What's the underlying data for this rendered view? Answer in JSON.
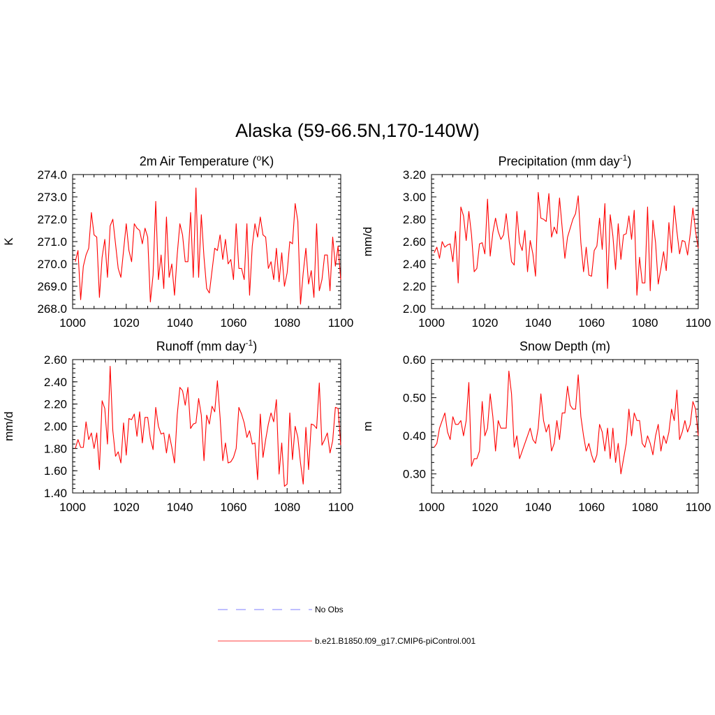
{
  "title": "Alaska (59-66.5N,170-140W)",
  "colors": {
    "model": "#ff0000",
    "obs": "#9999ff",
    "axis": "#000000"
  },
  "legend": [
    {
      "label": "No Obs",
      "style": "dashed",
      "color": "#9999ff"
    },
    {
      "label": "b.e21.B1850.f09_g17.CMIP6-piControl.001",
      "style": "solid",
      "color": "#ff6666"
    }
  ],
  "chart_data": [
    {
      "type": "line",
      "title": "2m Air Temperature (°K)",
      "title_parts": [
        "2m Air Temperature (",
        "o",
        "K)"
      ],
      "ylabel": "K",
      "xlim": [
        1000,
        1100
      ],
      "ylim": [
        268.0,
        274.0
      ],
      "xticks": [
        "1000",
        "1020",
        "1040",
        "1060",
        "1080",
        "1100"
      ],
      "yticks": [
        "268.0",
        "269.0",
        "270.0",
        "271.0",
        "272.0",
        "273.0",
        "274.0"
      ],
      "x_start": 1001,
      "series": [
        {
          "name": "b.e21.B1850.f09_g17.CMIP6-piControl.001",
          "values": [
            270.1,
            270.6,
            268.4,
            269.9,
            270.4,
            270.7,
            272.3,
            271.3,
            271.2,
            268.5,
            270.3,
            271.1,
            269.4,
            271.7,
            272.0,
            270.9,
            269.8,
            269.4,
            270.6,
            271.8,
            270.6,
            270.1,
            271.8,
            271.6,
            271.5,
            270.9,
            271.6,
            271.2,
            268.3,
            269.5,
            272.8,
            269.3,
            270.4,
            268.9,
            272.1,
            269.4,
            270.0,
            268.6,
            270.4,
            271.8,
            271.3,
            270.1,
            270.1,
            272.3,
            269.4,
            273.4,
            269.4,
            272.2,
            270.3,
            268.9,
            268.7,
            269.7,
            270.7,
            270.6,
            271.3,
            270.2,
            271.1,
            270.0,
            270.2,
            269.3,
            271.8,
            269.8,
            269.8,
            269.3,
            271.8,
            268.6,
            270.8,
            271.8,
            271.2,
            272.1,
            271.3,
            271.2,
            269.8,
            270.1,
            269.3,
            270.7,
            269.2,
            270.5,
            269.0,
            269.6,
            271.0,
            270.9,
            272.7,
            271.9,
            268.2,
            269.6,
            270.7,
            269.1,
            269.7,
            268.5,
            271.8,
            268.8,
            269.3,
            270.4,
            270.4,
            268.8,
            271.2,
            269.9,
            270.8,
            269.3
          ]
        }
      ]
    },
    {
      "type": "line",
      "title": "Precipitation (mm day-1)",
      "title_parts": [
        "Precipitation (mm day",
        "-1",
        ")"
      ],
      "ylabel": "mm/d",
      "xlim": [
        1000,
        1100
      ],
      "ylim": [
        2.0,
        3.2
      ],
      "xticks": [
        "1000",
        "1020",
        "1040",
        "1060",
        "1080",
        "1100"
      ],
      "yticks": [
        "2.00",
        "2.20",
        "2.40",
        "2.60",
        "2.80",
        "3.00",
        "3.20"
      ],
      "x_start": 1001,
      "series": [
        {
          "name": "b.e21.B1850.f09_g17.CMIP6-piControl.001",
          "values": [
            2.5,
            2.55,
            2.45,
            2.6,
            2.55,
            2.57,
            2.58,
            2.42,
            2.69,
            2.23,
            2.91,
            2.83,
            2.61,
            2.87,
            2.66,
            2.33,
            2.36,
            2.58,
            2.59,
            2.49,
            2.98,
            2.47,
            2.68,
            2.81,
            2.69,
            2.62,
            2.66,
            2.85,
            2.63,
            2.42,
            2.39,
            2.87,
            2.59,
            2.52,
            2.7,
            2.33,
            2.61,
            2.49,
            2.29,
            3.04,
            2.81,
            2.8,
            2.78,
            3.03,
            2.64,
            2.73,
            2.67,
            2.99,
            2.72,
            2.45,
            2.64,
            2.72,
            2.8,
            2.85,
            3.01,
            2.59,
            2.33,
            2.55,
            2.3,
            2.29,
            2.52,
            2.56,
            2.81,
            2.53,
            2.94,
            2.18,
            2.84,
            2.65,
            2.35,
            2.76,
            2.44,
            2.66,
            2.67,
            2.83,
            2.62,
            2.88,
            2.12,
            2.46,
            2.23,
            2.23,
            2.91,
            2.16,
            2.79,
            2.59,
            2.22,
            2.36,
            2.51,
            2.34,
            2.77,
            2.5,
            2.92,
            2.69,
            2.49,
            2.61,
            2.6,
            2.48,
            2.67,
            2.9,
            2.69,
            2.54
          ]
        }
      ]
    },
    {
      "type": "line",
      "title": "Runoff (mm day-1)",
      "title_parts": [
        "Runoff (mm day",
        "-1",
        ")"
      ],
      "ylabel": "mm/d",
      "xlim": [
        1000,
        1100
      ],
      "ylim": [
        1.4,
        2.6
      ],
      "xticks": [
        "1000",
        "1020",
        "1040",
        "1060",
        "1080",
        "1100"
      ],
      "yticks": [
        "1.40",
        "1.60",
        "1.80",
        "2.00",
        "2.20",
        "2.40",
        "2.60"
      ],
      "x_start": 1001,
      "series": [
        {
          "name": "b.e21.B1850.f09_g17.CMIP6-piControl.001",
          "values": [
            1.8,
            1.88,
            1.81,
            1.81,
            2.04,
            1.88,
            1.94,
            1.8,
            1.94,
            1.61,
            2.23,
            2.16,
            1.84,
            2.54,
            1.96,
            1.73,
            1.77,
            1.67,
            2.03,
            1.74,
            2.07,
            2.06,
            2.11,
            1.91,
            2.13,
            1.85,
            2.08,
            2.08,
            1.89,
            1.79,
            2.17,
            2.0,
            1.93,
            1.94,
            1.76,
            1.93,
            1.81,
            1.67,
            2.1,
            2.35,
            2.32,
            2.19,
            2.35,
            1.98,
            2.02,
            2.03,
            2.25,
            2.1,
            1.69,
            2.1,
            2.02,
            2.18,
            2.13,
            2.41,
            2.08,
            1.69,
            1.85,
            1.67,
            1.68,
            1.72,
            1.8,
            2.17,
            2.11,
            2.03,
            1.9,
            1.96,
            1.84,
            1.85,
            1.52,
            2.11,
            1.72,
            1.88,
            2.02,
            2.12,
            2.04,
            2.24,
            1.57,
            1.85,
            1.46,
            1.48,
            2.12,
            1.7,
            2.0,
            1.9,
            1.67,
            1.48,
            1.99,
            1.61,
            2.02,
            2.01,
            1.98,
            2.39,
            1.83,
            1.88,
            1.94,
            1.76,
            1.87,
            2.17,
            2.16,
            1.83
          ]
        }
      ]
    },
    {
      "type": "line",
      "title": "Snow Depth (m)",
      "title_parts": [
        "Snow Depth (m)"
      ],
      "ylabel": "m",
      "xlim": [
        1000,
        1100
      ],
      "ylim": [
        0.25,
        0.6
      ],
      "xticks": [
        "1000",
        "1020",
        "1040",
        "1060",
        "1080",
        "1100"
      ],
      "ytick_values": [
        0.3,
        0.4,
        0.5,
        0.6
      ],
      "yticks": [
        "0.30",
        "0.40",
        "0.50",
        "0.60"
      ],
      "x_start": 1001,
      "series": [
        {
          "name": "b.e21.B1850.f09_g17.CMIP6-piControl.001",
          "values": [
            0.37,
            0.38,
            0.42,
            0.44,
            0.46,
            0.41,
            0.39,
            0.45,
            0.43,
            0.43,
            0.44,
            0.4,
            0.44,
            0.54,
            0.32,
            0.34,
            0.34,
            0.36,
            0.49,
            0.4,
            0.42,
            0.51,
            0.45,
            0.36,
            0.44,
            0.42,
            0.42,
            0.42,
            0.57,
            0.51,
            0.37,
            0.4,
            0.34,
            0.36,
            0.38,
            0.4,
            0.42,
            0.39,
            0.38,
            0.42,
            0.51,
            0.44,
            0.41,
            0.43,
            0.36,
            0.38,
            0.44,
            0.39,
            0.46,
            0.46,
            0.53,
            0.48,
            0.47,
            0.47,
            0.56,
            0.45,
            0.4,
            0.36,
            0.38,
            0.35,
            0.33,
            0.35,
            0.43,
            0.41,
            0.36,
            0.42,
            0.34,
            0.42,
            0.33,
            0.38,
            0.3,
            0.34,
            0.38,
            0.47,
            0.4,
            0.46,
            0.44,
            0.44,
            0.38,
            0.37,
            0.4,
            0.38,
            0.35,
            0.4,
            0.43,
            0.36,
            0.4,
            0.38,
            0.41,
            0.47,
            0.44,
            0.52,
            0.39,
            0.41,
            0.44,
            0.41,
            0.43,
            0.49,
            0.47,
            0.4
          ]
        }
      ]
    }
  ]
}
